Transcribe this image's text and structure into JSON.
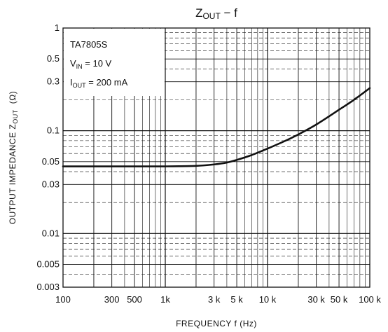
{
  "chart_data": {
    "type": "line",
    "title_main": "Z",
    "title_sub": "OUT",
    "title_rest": " − f",
    "xlabel": "FREQUENCY   f    (Hz)",
    "ylabel_main": "OUTPUT IMPEDANCE   Z",
    "ylabel_sub": "OUT",
    "ylabel_unit": "(Ω)",
    "x_scale": "log",
    "y_scale": "log",
    "xlim": [
      100,
      100000
    ],
    "ylim": [
      0.003,
      1
    ],
    "grid": true,
    "x_ticks": [
      {
        "v": 100,
        "label": "100"
      },
      {
        "v": 300,
        "label": "300"
      },
      {
        "v": 500,
        "label": "500"
      },
      {
        "v": 1000,
        "label": "1k"
      },
      {
        "v": 3000,
        "label": "3 k"
      },
      {
        "v": 5000,
        "label": "5 k"
      },
      {
        "v": 10000,
        "label": "10 k"
      },
      {
        "v": 30000,
        "label": "30 k"
      },
      {
        "v": 50000,
        "label": "50 k"
      },
      {
        "v": 100000,
        "label": "100 k"
      }
    ],
    "y_ticks": [
      {
        "v": 1,
        "label": "1"
      },
      {
        "v": 0.5,
        "label": "0.5"
      },
      {
        "v": 0.3,
        "label": "0.3"
      },
      {
        "v": 0.1,
        "label": "0.1"
      },
      {
        "v": 0.05,
        "label": "0.05"
      },
      {
        "v": 0.03,
        "label": "0.03"
      },
      {
        "v": 0.01,
        "label": "0.01"
      },
      {
        "v": 0.005,
        "label": "0.005"
      },
      {
        "v": 0.003,
        "label": "0.003"
      }
    ],
    "annotation": {
      "line1": "TA7805S",
      "line2_main": "V",
      "line2_sub": "IN",
      "line2_rest": " = 10 V",
      "line3_main": "I",
      "line3_sub": "OUT",
      "line3_rest": " = 200 mA"
    },
    "series": [
      {
        "x": [
          100,
          200,
          500,
          1000,
          2000,
          3000,
          4000,
          5000,
          7000,
          10000,
          15000,
          20000,
          30000,
          50000,
          70000,
          100000
        ],
        "y": [
          0.045,
          0.045,
          0.045,
          0.045,
          0.0455,
          0.047,
          0.049,
          0.052,
          0.058,
          0.067,
          0.08,
          0.092,
          0.115,
          0.16,
          0.2,
          0.26
        ]
      }
    ]
  }
}
